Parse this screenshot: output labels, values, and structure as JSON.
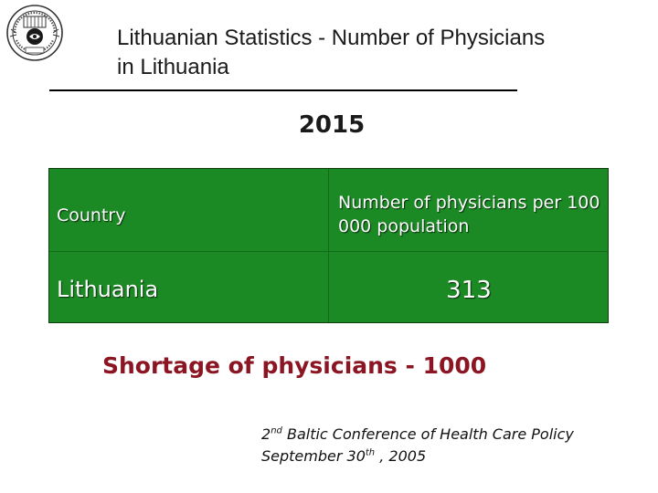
{
  "slide": {
    "title": "Lithuanian Statistics - Number of Physicians in Lithuania",
    "year": "2015",
    "logo_icon": "university-seal-icon"
  },
  "table": {
    "headers": [
      "Country",
      "Number of physicians per 100 000 population"
    ],
    "rows": [
      [
        "Lithuania",
        "313"
      ]
    ],
    "background_color": "#1b8a24"
  },
  "shortage": {
    "text": "Shortage of physicians - 1000",
    "color": "#8b1522"
  },
  "footer": {
    "line1_ordinal": "2",
    "line1_ordinal_suffix": "nd",
    "line1_rest": " Baltic Conference of Health Care Policy",
    "line2_prefix": "September 30",
    "line2_suffix": "th",
    "line2_rest": " , 2005"
  }
}
